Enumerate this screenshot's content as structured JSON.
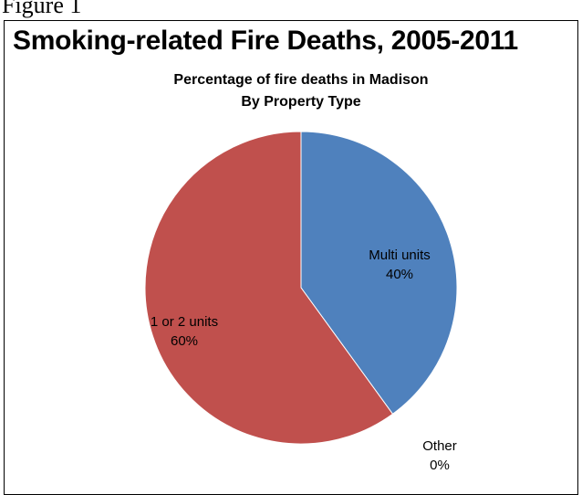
{
  "figure_label": "Figure 1",
  "main_title": "Smoking-related Fire Deaths, 2005-2011",
  "chart_data": {
    "type": "pie",
    "title_lines": [
      "Percentage of fire deaths in Madison",
      "By Property Type"
    ],
    "slices": [
      {
        "name": "Multi units",
        "value": 40,
        "pct_label": "40%",
        "color": "#4f81bd"
      },
      {
        "name": "Other",
        "value": 0,
        "pct_label": "0%",
        "color": "#9bbb59"
      },
      {
        "name": "1 or 2 units",
        "value": 60,
        "pct_label": "60%",
        "color": "#c0504d"
      }
    ]
  }
}
